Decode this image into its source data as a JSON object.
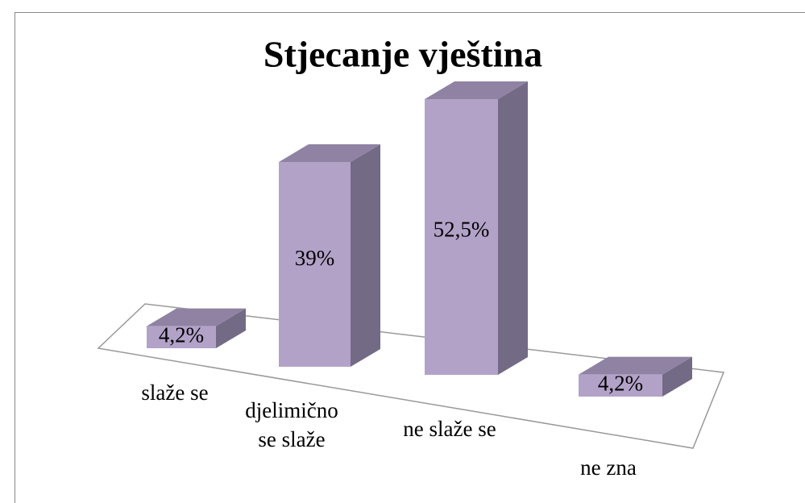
{
  "chart_data": {
    "type": "bar3d",
    "title": "Stjecanje vještina",
    "categories": [
      "slaže se",
      "djelimično se slaže",
      "ne slaže se",
      "ne zna"
    ],
    "values": [
      4.2,
      39,
      52.5,
      4.2
    ],
    "value_labels": [
      "4,2%",
      "39%",
      "52,5%",
      "4,2%"
    ],
    "color": "#b3a2c8"
  }
}
